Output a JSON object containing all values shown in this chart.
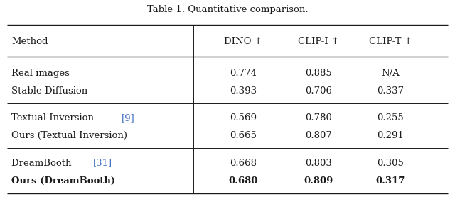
{
  "title": "Table 1. Quantitative comparison.",
  "col_headers": [
    "Method",
    "DINO ↑",
    "CLIP-I ↑",
    "CLIP-T ↑"
  ],
  "rows": [
    {
      "method": "Real images",
      "method_base": "Real images",
      "ref": "",
      "dino": "0.774",
      "clip_i": "0.885",
      "clip_t": "N/A",
      "bold": false,
      "group": 0
    },
    {
      "method": "Stable Diffusion",
      "method_base": "Stable Diffusion",
      "ref": "",
      "dino": "0.393",
      "clip_i": "0.706",
      "clip_t": "0.337",
      "bold": false,
      "group": 0
    },
    {
      "method": "Textual Inversion ",
      "method_base": "Textual Inversion ",
      "ref": "[9]",
      "dino": "0.569",
      "clip_i": "0.780",
      "clip_t": "0.255",
      "bold": false,
      "group": 1
    },
    {
      "method": "Ours (Textual Inversion)",
      "method_base": "Ours (Textual Inversion)",
      "ref": "",
      "dino": "0.665",
      "clip_i": "0.807",
      "clip_t": "0.291",
      "bold": false,
      "group": 1
    },
    {
      "method": "DreamBooth ",
      "method_base": "DreamBooth ",
      "ref": "[31]",
      "dino": "0.668",
      "clip_i": "0.803",
      "clip_t": "0.305",
      "bold": false,
      "group": 2
    },
    {
      "method": "Ours (DreamBooth)",
      "method_base": "Ours (DreamBooth)",
      "ref": "",
      "dino": "0.680",
      "clip_i": "0.809",
      "clip_t": "0.317",
      "bold": true,
      "group": 2
    }
  ],
  "bg_color": "#ffffff",
  "text_color": "#1a1a1a",
  "ref_color": "#4472C4",
  "title_fontsize": 9.5,
  "header_fontsize": 9.5,
  "body_fontsize": 9.5
}
